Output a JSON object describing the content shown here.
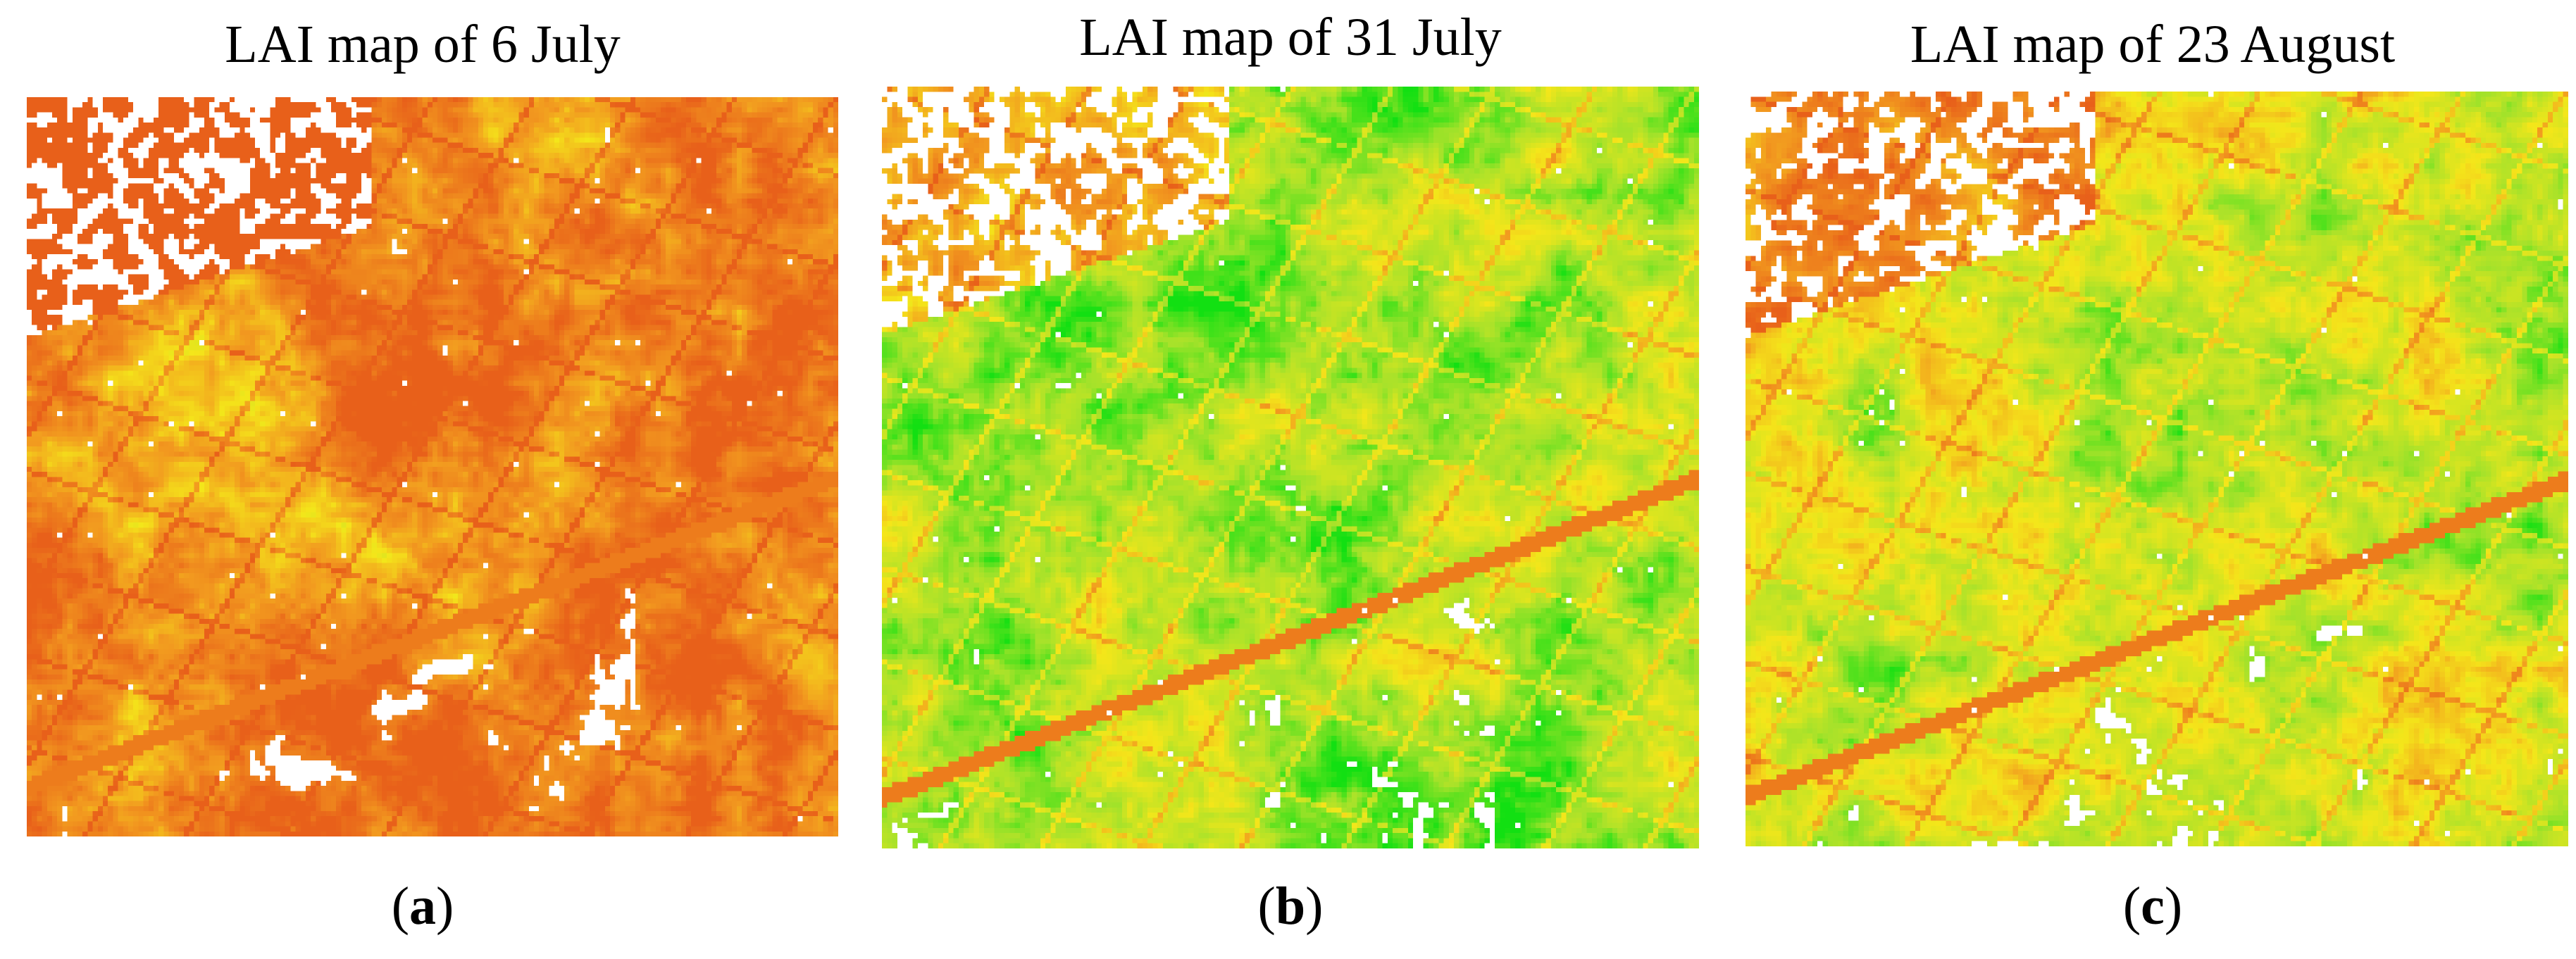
{
  "figure": {
    "panels": [
      {
        "title": "LAI map of 6 July",
        "caption_open": "(",
        "caption_letter": "a",
        "caption_close": ")",
        "dominant_color": "#e8761a",
        "map_seed": 11,
        "mean_lai_level": 0.18
      },
      {
        "title": "LAI map of 31 July",
        "caption_open": "(",
        "caption_letter": "b",
        "caption_close": ")",
        "dominant_color": "#4fd41e",
        "map_seed": 23,
        "mean_lai_level": 0.74
      },
      {
        "title": "LAI map of 23 August",
        "caption_open": "(",
        "caption_letter": "c",
        "caption_close": ")",
        "dominant_color": "#8fdc2c",
        "map_seed": 37,
        "mean_lai_level": 0.62
      }
    ],
    "color_scale": {
      "low": "#e8601a",
      "mid_low": "#f29a1f",
      "mid": "#f4e61a",
      "mid_high": "#a6e22a",
      "high": "#12e012",
      "no_data": "#ffffff"
    }
  }
}
